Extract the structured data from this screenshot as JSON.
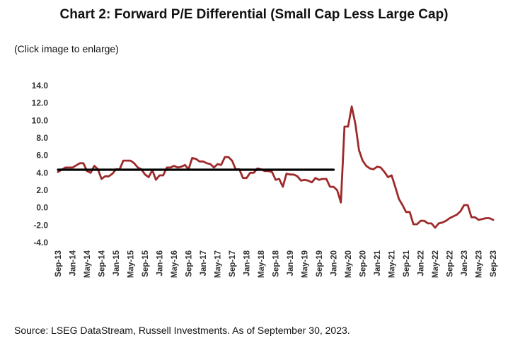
{
  "header": {
    "title": "Chart 2: Forward P/E Differential (Small Cap Less Large Cap)",
    "hint": "(Click image to enlarge)"
  },
  "footer": {
    "source": "Source: LSEG DataStream, Russell Investments. As of September 30, 2023."
  },
  "chart_data": {
    "type": "line",
    "title": "Chart 2: Forward P/E Differential (Small Cap Less Large Cap)",
    "xlabel": "",
    "ylabel": "",
    "ylim": [
      -4.0,
      14.0
    ],
    "yticks": [
      "14.0",
      "12.0",
      "10.0",
      "8.0",
      "6.0",
      "4.0",
      "2.0",
      "0.0",
      "-2.0",
      "-4.0"
    ],
    "x_tick_labels": [
      "Sep-13",
      "Jan-14",
      "May-14",
      "Sep-14",
      "Jan-15",
      "May-15",
      "Sep-15",
      "Jan-16",
      "May-16",
      "Sep-16",
      "Jan-17",
      "May-17",
      "Sep-17",
      "Jan-18",
      "May-18",
      "Sep-18",
      "Jan-19",
      "May-19",
      "Sep-19",
      "Jan-20",
      "May-20",
      "Sep-20",
      "Jan-21",
      "May-21",
      "Sep-21",
      "Jan-22",
      "May-22",
      "Sep-22",
      "Jan-23",
      "May-23",
      "Sep-23"
    ],
    "x_start": "Sep-13",
    "x_end": "Sep-23",
    "grid": false,
    "legend": "none",
    "series": [
      {
        "color": "#9e2a2b",
        "values": [
          [
            "Sep-13",
            4.1
          ],
          [
            "Nov-13",
            4.6
          ],
          [
            "Jan-14",
            4.6
          ],
          [
            "Mar-14",
            5.1
          ],
          [
            "Apr-14",
            5.1
          ],
          [
            "May-14",
            4.2
          ],
          [
            "Jun-14",
            4.0
          ],
          [
            "Jul-14",
            4.8
          ],
          [
            "Aug-14",
            4.4
          ],
          [
            "Sep-14",
            3.3
          ],
          [
            "Oct-14",
            3.6
          ],
          [
            "Nov-14",
            3.6
          ],
          [
            "Dec-14",
            3.9
          ],
          [
            "Jan-15",
            4.4
          ],
          [
            "Feb-15",
            4.4
          ],
          [
            "Mar-15",
            5.4
          ],
          [
            "May-15",
            5.4
          ],
          [
            "Jun-15",
            5.1
          ],
          [
            "Jul-15",
            4.6
          ],
          [
            "Aug-15",
            4.4
          ],
          [
            "Sep-15",
            3.8
          ],
          [
            "Oct-15",
            3.5
          ],
          [
            "Nov-15",
            4.3
          ],
          [
            "Dec-15",
            3.2
          ],
          [
            "Jan-16",
            3.7
          ],
          [
            "Feb-16",
            3.7
          ],
          [
            "Mar-16",
            4.6
          ],
          [
            "Apr-16",
            4.6
          ],
          [
            "May-16",
            4.8
          ],
          [
            "Jun-16",
            4.6
          ],
          [
            "Jul-16",
            4.7
          ],
          [
            "Aug-16",
            4.9
          ],
          [
            "Sep-16",
            4.4
          ],
          [
            "Oct-16",
            5.7
          ],
          [
            "Nov-16",
            5.6
          ],
          [
            "Dec-16",
            5.3
          ],
          [
            "Jan-17",
            5.3
          ],
          [
            "Feb-17",
            5.1
          ],
          [
            "Mar-17",
            5.0
          ],
          [
            "Apr-17",
            4.6
          ],
          [
            "May-17",
            5.0
          ],
          [
            "Jun-17",
            4.9
          ],
          [
            "Jul-17",
            5.8
          ],
          [
            "Aug-17",
            5.8
          ],
          [
            "Sep-17",
            5.4
          ],
          [
            "Oct-17",
            4.4
          ],
          [
            "Nov-17",
            4.4
          ],
          [
            "Dec-17",
            3.4
          ],
          [
            "Jan-18",
            3.4
          ],
          [
            "Feb-18",
            4.0
          ],
          [
            "Mar-18",
            4.0
          ],
          [
            "Apr-18",
            4.5
          ],
          [
            "May-18",
            4.4
          ],
          [
            "Jun-18",
            4.2
          ],
          [
            "Jul-18",
            4.2
          ],
          [
            "Aug-18",
            4.1
          ],
          [
            "Sep-18",
            3.2
          ],
          [
            "Oct-18",
            3.3
          ],
          [
            "Nov-18",
            2.4
          ],
          [
            "Dec-18",
            3.9
          ],
          [
            "Jan-19",
            3.8
          ],
          [
            "Feb-19",
            3.8
          ],
          [
            "Mar-19",
            3.6
          ],
          [
            "Apr-19",
            3.1
          ],
          [
            "May-19",
            3.2
          ],
          [
            "Jun-19",
            3.1
          ],
          [
            "Jul-19",
            2.9
          ],
          [
            "Aug-19",
            3.4
          ],
          [
            "Sep-19",
            3.2
          ],
          [
            "Oct-19",
            3.3
          ],
          [
            "Nov-19",
            3.3
          ],
          [
            "Dec-19",
            2.4
          ],
          [
            "Jan-20",
            2.4
          ],
          [
            "Feb-20",
            2.0
          ],
          [
            "Mar-20",
            0.6
          ],
          [
            "Apr-20",
            9.3
          ],
          [
            "May-20",
            9.3
          ],
          [
            "Jun-20",
            11.6
          ],
          [
            "Jul-20",
            9.6
          ],
          [
            "Aug-20",
            6.6
          ],
          [
            "Sep-20",
            5.4
          ],
          [
            "Oct-20",
            4.8
          ],
          [
            "Nov-20",
            4.5
          ],
          [
            "Dec-20",
            4.4
          ],
          [
            "Jan-21",
            4.7
          ],
          [
            "Feb-21",
            4.6
          ],
          [
            "Mar-21",
            4.1
          ],
          [
            "Apr-21",
            3.5
          ],
          [
            "May-21",
            3.7
          ],
          [
            "Jun-21",
            2.4
          ],
          [
            "Jul-21",
            1.0
          ],
          [
            "Aug-21",
            0.3
          ],
          [
            "Sep-21",
            -0.5
          ],
          [
            "Oct-21",
            -0.5
          ],
          [
            "Nov-21",
            -1.9
          ],
          [
            "Dec-21",
            -1.9
          ],
          [
            "Jan-22",
            -1.5
          ],
          [
            "Feb-22",
            -1.5
          ],
          [
            "Mar-22",
            -1.8
          ],
          [
            "Apr-22",
            -1.8
          ],
          [
            "May-22",
            -2.3
          ],
          [
            "Jun-22",
            -1.8
          ],
          [
            "Jul-22",
            -1.7
          ],
          [
            "Aug-22",
            -1.5
          ],
          [
            "Sep-22",
            -1.2
          ],
          [
            "Oct-22",
            -1.0
          ],
          [
            "Nov-22",
            -0.8
          ],
          [
            "Dec-22",
            -0.4
          ],
          [
            "Jan-23",
            0.3
          ],
          [
            "Feb-23",
            0.3
          ],
          [
            "Mar-23",
            -1.1
          ],
          [
            "Apr-23",
            -1.1
          ],
          [
            "May-23",
            -1.4
          ],
          [
            "Jun-23",
            -1.3
          ],
          [
            "Jul-23",
            -1.2
          ],
          [
            "Aug-23",
            -1.2
          ],
          [
            "Sep-23",
            -1.4
          ]
        ]
      },
      {
        "color": "#000000",
        "values": [
          [
            "Sep-13",
            4.35
          ],
          [
            "Jan-20",
            4.35
          ]
        ]
      }
    ]
  }
}
